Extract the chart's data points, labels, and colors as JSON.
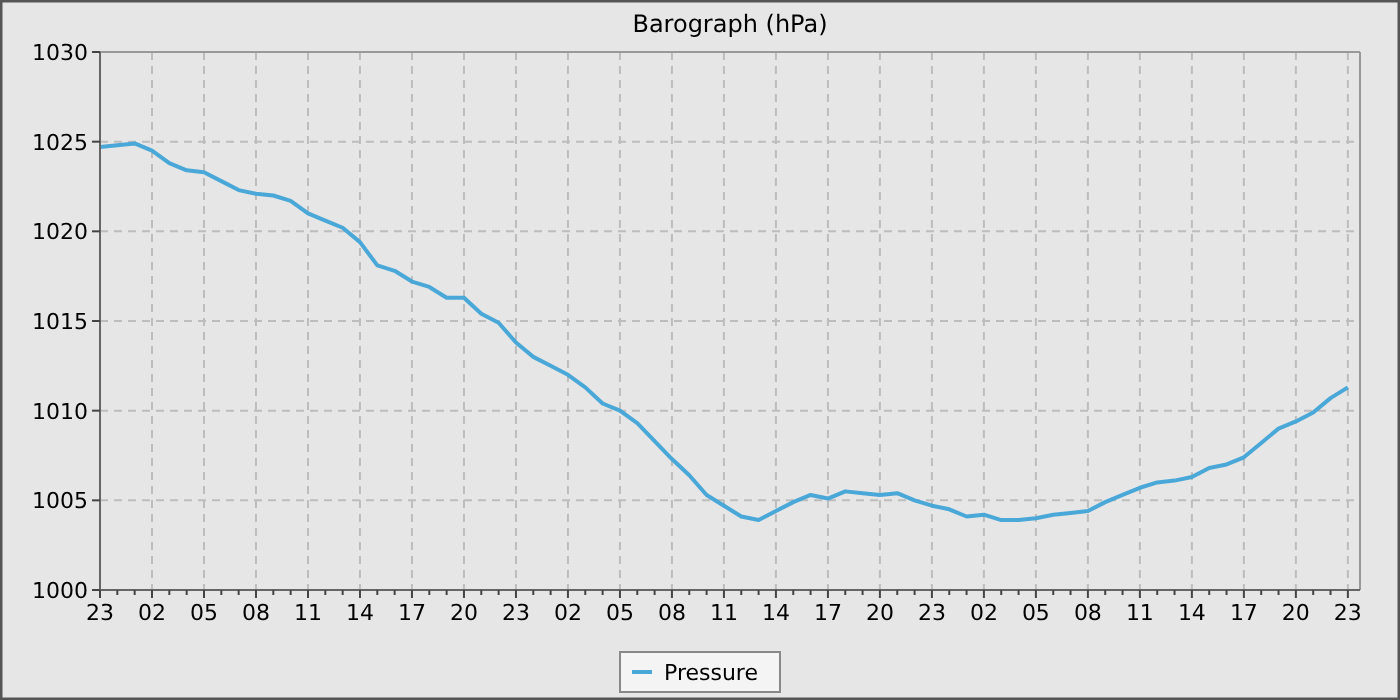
{
  "chart_data": {
    "type": "line",
    "title": "Barograph (hPa)",
    "categories": [
      "23",
      null,
      null,
      "02",
      null,
      null,
      "05",
      null,
      null,
      "08",
      null,
      null,
      "11",
      null,
      null,
      "14",
      null,
      null,
      "17",
      null,
      null,
      "20",
      null,
      null,
      "23",
      null,
      null,
      "02",
      null,
      null,
      "05",
      null,
      null,
      "08",
      null,
      null,
      "11",
      null,
      null,
      "14",
      null,
      null,
      "17",
      null,
      null,
      "20",
      null,
      null,
      "23",
      null,
      null,
      "02",
      null,
      null,
      "05",
      null,
      null,
      "08",
      null,
      null,
      "11",
      null,
      null,
      "14",
      null,
      null,
      "17",
      null,
      null,
      "20",
      null,
      null,
      "23"
    ],
    "series": [
      {
        "name": "Pressure",
        "color": "#4aa8d8",
        "values": [
          1024.7,
          1024.8,
          1024.9,
          1024.5,
          1023.8,
          1023.4,
          1023.3,
          1022.8,
          1022.3,
          1022.1,
          1022.0,
          1021.7,
          1021.0,
          1020.6,
          1020.2,
          1019.4,
          1018.1,
          1017.8,
          1017.2,
          1016.9,
          1016.3,
          1016.3,
          1015.4,
          1014.9,
          1013.8,
          1013.0,
          1012.5,
          1012.0,
          1011.3,
          1010.4,
          1010.0,
          1009.3,
          1008.3,
          1007.3,
          1006.4,
          1005.3,
          1004.7,
          1004.1,
          1003.9,
          1004.4,
          1004.9,
          1005.3,
          1005.1,
          1005.5,
          1005.4,
          1005.3,
          1005.4,
          1005.0,
          1004.7,
          1004.5,
          1004.1,
          1004.2,
          1003.9,
          1003.9,
          1004.0,
          1004.2,
          1004.3,
          1004.4,
          1004.9,
          1005.3,
          1005.7,
          1006.0,
          1006.1,
          1006.3,
          1006.8,
          1007.0,
          1007.4,
          1008.2,
          1009.0,
          1009.4,
          1009.9,
          1010.7,
          1011.3
        ]
      }
    ],
    "ylim": [
      1000,
      1030
    ],
    "yticks": [
      1000,
      1005,
      1010,
      1015,
      1020,
      1025,
      1030
    ],
    "grid": true,
    "legend": "bottom",
    "marker": "none",
    "line_style": "solid"
  }
}
